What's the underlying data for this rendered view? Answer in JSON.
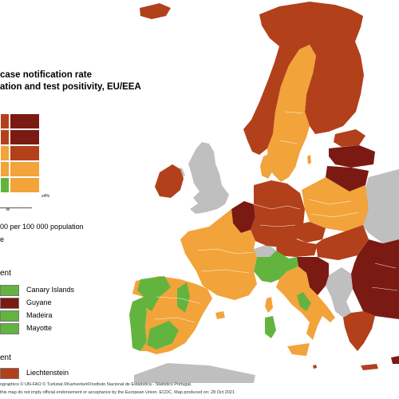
{
  "title": {
    "line1": "case notification rate",
    "line2": "ation and test positivity, EU/EEA"
  },
  "legend": {
    "positivity_label": "≥4%",
    "axis_label": "te",
    "rate_note": "00 per 100 000 population",
    "rate_suffix": "e",
    "colors": {
      "dark_red": "#7a1a12",
      "red": "#b2401b",
      "orange": "#f2a33a",
      "green": "#63b43f",
      "grey": "#bfbfbf"
    }
  },
  "outermost": {
    "header": "ent",
    "items": [
      {
        "label": "Canary Islands",
        "color": "#63b43f"
      },
      {
        "label": "Guyane",
        "color": "#7a1a12"
      },
      {
        "label": "Madeira",
        "color": "#63b43f"
      },
      {
        "label": "Mayotte",
        "color": "#63b43f"
      }
    ]
  },
  "small_states": {
    "header": "ent",
    "items": [
      {
        "label": "Liechtenstein",
        "color": "#b2401b"
      }
    ]
  },
  "footer": {
    "line1": "ographics © UN-FAO © Turkstat.©Kartverket©Instituto Nacional de Estatística - Statistics Portugal.",
    "line2": "this map do not imply official endorsement or acceptance by the European Union. ECDC. Map produced on: 28 Oct 2021"
  }
}
